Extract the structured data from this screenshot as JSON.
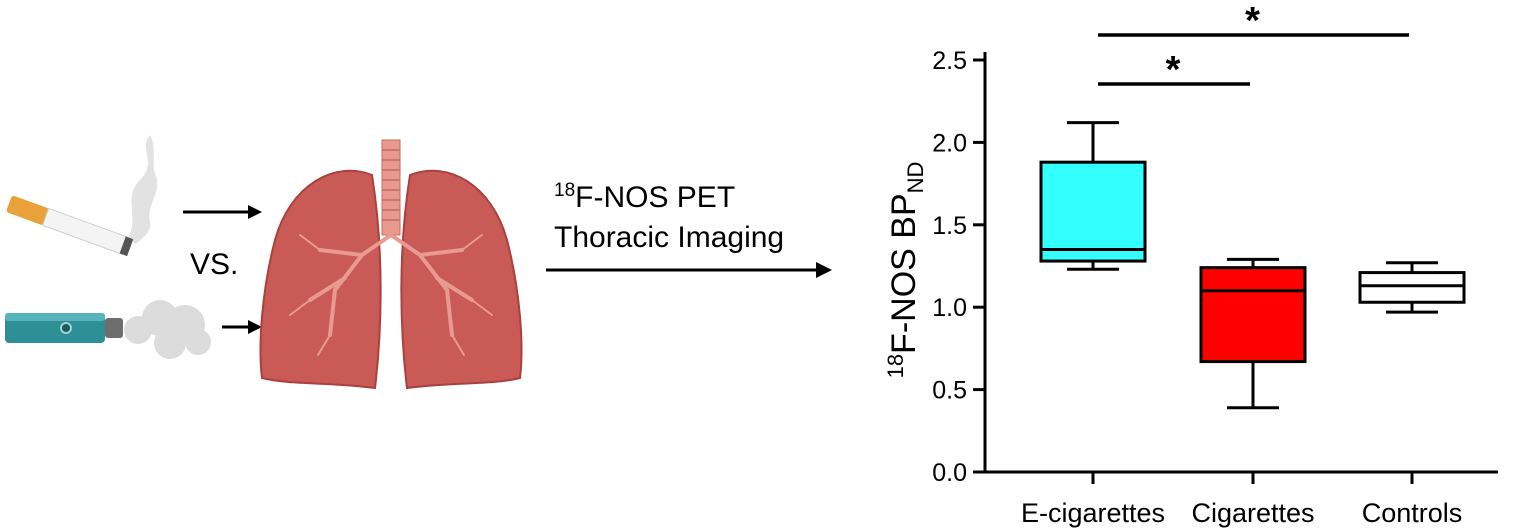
{
  "illustration": {
    "vs_label": "VS.",
    "imaging_pre": "18",
    "imaging_line1": "F-NOS PET",
    "imaging_line2": "Thoracic Imaging",
    "colors": {
      "cigarette_filter": "#e9a23b",
      "cigarette_tip": "#555555",
      "vape_body": "#2f8f96",
      "lung": "#c95a56",
      "lung_dark": "#a8413f",
      "airway": "#e89a8f",
      "smoke": "#dddddd"
    }
  },
  "chart_data": {
    "type": "box",
    "categories": [
      "E-cigarettes",
      "Cigarettes",
      "Controls"
    ],
    "ylabel_pre": "18",
    "ylabel_main": "F-NOS BP",
    "ylabel_sub": "ND",
    "ylim": [
      0,
      2.5
    ],
    "yticks": [
      "0.0",
      "0.5",
      "1.0",
      "1.5",
      "2.0",
      "2.5"
    ],
    "boxes": [
      {
        "name": "E-cigarettes",
        "min": 1.23,
        "q1": 1.28,
        "median": 1.35,
        "q3": 1.88,
        "max": 2.12,
        "color": "#33ffff"
      },
      {
        "name": "Cigarettes",
        "min": 0.39,
        "q1": 0.67,
        "median": 1.1,
        "q3": 1.24,
        "max": 1.29,
        "color": "#ff0000"
      },
      {
        "name": "Controls",
        "min": 0.97,
        "q1": 1.03,
        "median": 1.13,
        "q3": 1.21,
        "max": 1.27,
        "color": "#ffffff"
      }
    ],
    "significance": [
      {
        "from": 0,
        "to": 1,
        "label": "*"
      },
      {
        "from": 0,
        "to": 2,
        "label": "*"
      }
    ],
    "grid": false,
    "legend": "none"
  }
}
